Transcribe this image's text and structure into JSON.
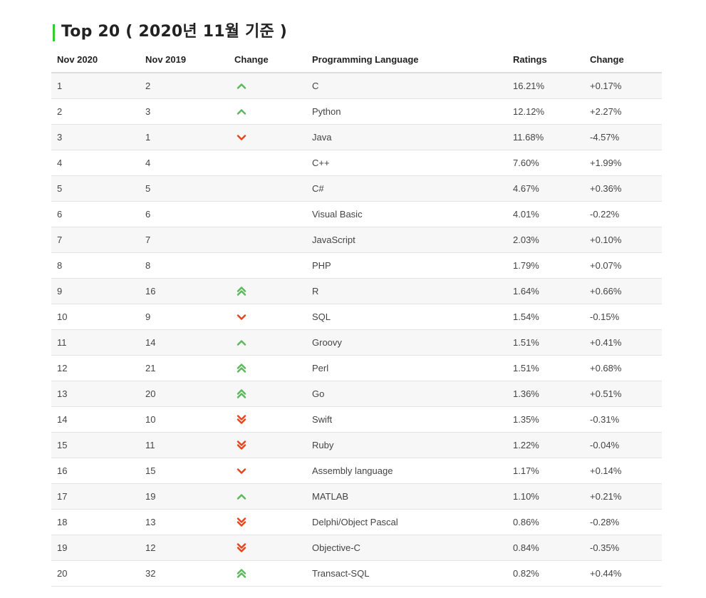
{
  "title": "Top 20 ( 2020년 11월 기준 )",
  "headers": [
    "Nov 2020",
    "Nov 2019",
    "Change",
    "Programming Language",
    "Ratings",
    "Change"
  ],
  "colors": {
    "up": "#5cb85c",
    "down": "#e8441a",
    "title_bar": "#33cc33"
  },
  "rows": [
    {
      "nov2020": "1",
      "nov2019": "2",
      "trend": "up",
      "language": "C",
      "rating": "16.21%",
      "change": "+0.17%"
    },
    {
      "nov2020": "2",
      "nov2019": "3",
      "trend": "up",
      "language": "Python",
      "rating": "12.12%",
      "change": "+2.27%"
    },
    {
      "nov2020": "3",
      "nov2019": "1",
      "trend": "down",
      "language": "Java",
      "rating": "11.68%",
      "change": "-4.57%"
    },
    {
      "nov2020": "4",
      "nov2019": "4",
      "trend": "none",
      "language": "C++",
      "rating": "7.60%",
      "change": "+1.99%"
    },
    {
      "nov2020": "5",
      "nov2019": "5",
      "trend": "none",
      "language": "C#",
      "rating": "4.67%",
      "change": "+0.36%"
    },
    {
      "nov2020": "6",
      "nov2019": "6",
      "trend": "none",
      "language": "Visual Basic",
      "rating": "4.01%",
      "change": "-0.22%"
    },
    {
      "nov2020": "7",
      "nov2019": "7",
      "trend": "none",
      "language": "JavaScript",
      "rating": "2.03%",
      "change": "+0.10%"
    },
    {
      "nov2020": "8",
      "nov2019": "8",
      "trend": "none",
      "language": "PHP",
      "rating": "1.79%",
      "change": "+0.07%"
    },
    {
      "nov2020": "9",
      "nov2019": "16",
      "trend": "double-up",
      "language": "R",
      "rating": "1.64%",
      "change": "+0.66%"
    },
    {
      "nov2020": "10",
      "nov2019": "9",
      "trend": "down",
      "language": "SQL",
      "rating": "1.54%",
      "change": "-0.15%"
    },
    {
      "nov2020": "11",
      "nov2019": "14",
      "trend": "up",
      "language": "Groovy",
      "rating": "1.51%",
      "change": "+0.41%"
    },
    {
      "nov2020": "12",
      "nov2019": "21",
      "trend": "double-up",
      "language": "Perl",
      "rating": "1.51%",
      "change": "+0.68%"
    },
    {
      "nov2020": "13",
      "nov2019": "20",
      "trend": "double-up",
      "language": "Go",
      "rating": "1.36%",
      "change": "+0.51%"
    },
    {
      "nov2020": "14",
      "nov2019": "10",
      "trend": "double-down",
      "language": "Swift",
      "rating": "1.35%",
      "change": "-0.31%"
    },
    {
      "nov2020": "15",
      "nov2019": "11",
      "trend": "double-down",
      "language": "Ruby",
      "rating": "1.22%",
      "change": "-0.04%"
    },
    {
      "nov2020": "16",
      "nov2019": "15",
      "trend": "down",
      "language": "Assembly language",
      "rating": "1.17%",
      "change": "+0.14%"
    },
    {
      "nov2020": "17",
      "nov2019": "19",
      "trend": "up",
      "language": "MATLAB",
      "rating": "1.10%",
      "change": "+0.21%"
    },
    {
      "nov2020": "18",
      "nov2019": "13",
      "trend": "double-down",
      "language": "Delphi/Object Pascal",
      "rating": "0.86%",
      "change": "-0.28%"
    },
    {
      "nov2020": "19",
      "nov2019": "12",
      "trend": "double-down",
      "language": "Objective-C",
      "rating": "0.84%",
      "change": "-0.35%"
    },
    {
      "nov2020": "20",
      "nov2019": "32",
      "trend": "double-up",
      "language": "Transact-SQL",
      "rating": "0.82%",
      "change": "+0.44%"
    }
  ]
}
